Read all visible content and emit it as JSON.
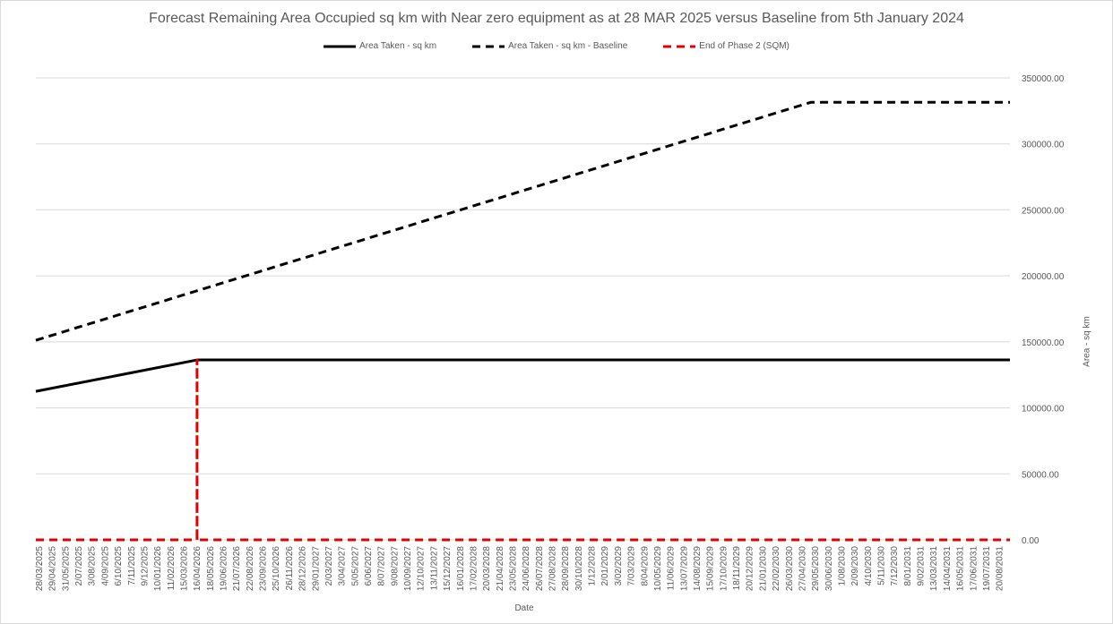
{
  "chart_data": {
    "type": "line",
    "title": "Forecast Remaining Area Occupied sq km with Near zero equipment as at 28 MAR 2025 versus Baseline from 5th January 2024",
    "xlabel": "Date",
    "ylabel": "Area - sq km",
    "ylim": [
      0,
      350000
    ],
    "yticks": [
      "0.00",
      "50000.00",
      "100000.00",
      "150000.00",
      "200000.00",
      "250000.00",
      "300000.00",
      "350000.00"
    ],
    "yaxis_side": "right",
    "grid": true,
    "legend_position": "top",
    "categories": [
      "28/03/2025",
      "29/04/2025",
      "31/05/2025",
      "2/07/2025",
      "3/08/2025",
      "4/09/2025",
      "6/10/2025",
      "7/11/2025",
      "9/12/2025",
      "10/01/2026",
      "11/02/2026",
      "15/03/2026",
      "16/04/2026",
      "18/05/2026",
      "19/06/2026",
      "21/07/2026",
      "22/08/2026",
      "23/09/2026",
      "25/10/2026",
      "26/11/2026",
      "28/12/2026",
      "29/01/2027",
      "2/03/2027",
      "3/04/2027",
      "5/05/2027",
      "6/06/2027",
      "8/07/2027",
      "9/08/2027",
      "10/09/2027",
      "12/10/2027",
      "13/11/2027",
      "15/12/2027",
      "16/01/2028",
      "17/02/2028",
      "20/03/2028",
      "21/04/2028",
      "23/05/2028",
      "24/06/2028",
      "26/07/2028",
      "27/08/2028",
      "28/09/2028",
      "30/10/2028",
      "1/12/2028",
      "2/01/2029",
      "3/02/2029",
      "7/03/2029",
      "8/04/2029",
      "10/05/2029",
      "11/06/2029",
      "13/07/2029",
      "14/08/2029",
      "15/09/2029",
      "17/10/2029",
      "18/11/2029",
      "20/12/2029",
      "21/01/2030",
      "22/02/2030",
      "26/03/2030",
      "27/04/2030",
      "29/05/2030",
      "30/06/2030",
      "1/08/2030",
      "2/09/2030",
      "4/10/2030",
      "5/11/2030",
      "7/12/2030",
      "8/01/2031",
      "9/02/2031",
      "13/03/2031",
      "14/04/2031",
      "16/05/2031",
      "17/06/2031",
      "19/07/2031",
      "20/08/2031"
    ],
    "series": [
      {
        "name": "Area Taken - sq km",
        "color": "#000000",
        "dash": "solid",
        "points": [
          [
            0,
            112500
          ],
          [
            12.05,
            136300
          ],
          [
            74.1,
            136300
          ]
        ]
      },
      {
        "name": "Area Taken - sq km - Baseline",
        "color": "#000000",
        "dash": "dashed",
        "points": [
          [
            0,
            151200
          ],
          [
            58.7,
            331500
          ],
          [
            74.1,
            331500
          ]
        ]
      },
      {
        "name": "End of Phase 2 (SQM)",
        "color": "#e00000",
        "dash": "dashed",
        "points": [
          [
            0,
            0
          ],
          [
            12.05,
            0
          ],
          [
            12.05,
            136300
          ],
          [
            12.05,
            0
          ],
          [
            74.1,
            0
          ]
        ]
      }
    ]
  }
}
